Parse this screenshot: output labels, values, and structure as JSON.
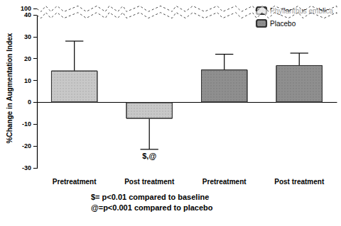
{
  "chart_data": {
    "type": "bar",
    "y_label": "%Change in Augmentation Index",
    "categories": [
      "Pretreatment",
      "Post treatment",
      "Pretreatment",
      "Post treatment"
    ],
    "series": [
      {
        "name": "Phyllanthus emblica",
        "color": "#c8c8c8",
        "values": [
          14.5,
          -7.5,
          null,
          null
        ],
        "errors": [
          13.5,
          14,
          null,
          null
        ],
        "annotations": [
          null,
          "$,@",
          null,
          null
        ]
      },
      {
        "name": "Placebo",
        "color": "#8f8f8f",
        "values": [
          null,
          null,
          15,
          17
        ],
        "errors": [
          null,
          null,
          7,
          5.5
        ],
        "annotations": [
          null,
          null,
          null,
          null
        ]
      }
    ],
    "ylim": [
      -30,
      100
    ],
    "yticks": [
      -30,
      -20,
      -10,
      0,
      10,
      20,
      30,
      40,
      100
    ],
    "ybreak": [
      40,
      100
    ],
    "grid": false,
    "legend": "top-right",
    "notes": [
      "$= p<0.01 compared to baseline",
      "@=p<0.001 compared to placebo"
    ]
  }
}
